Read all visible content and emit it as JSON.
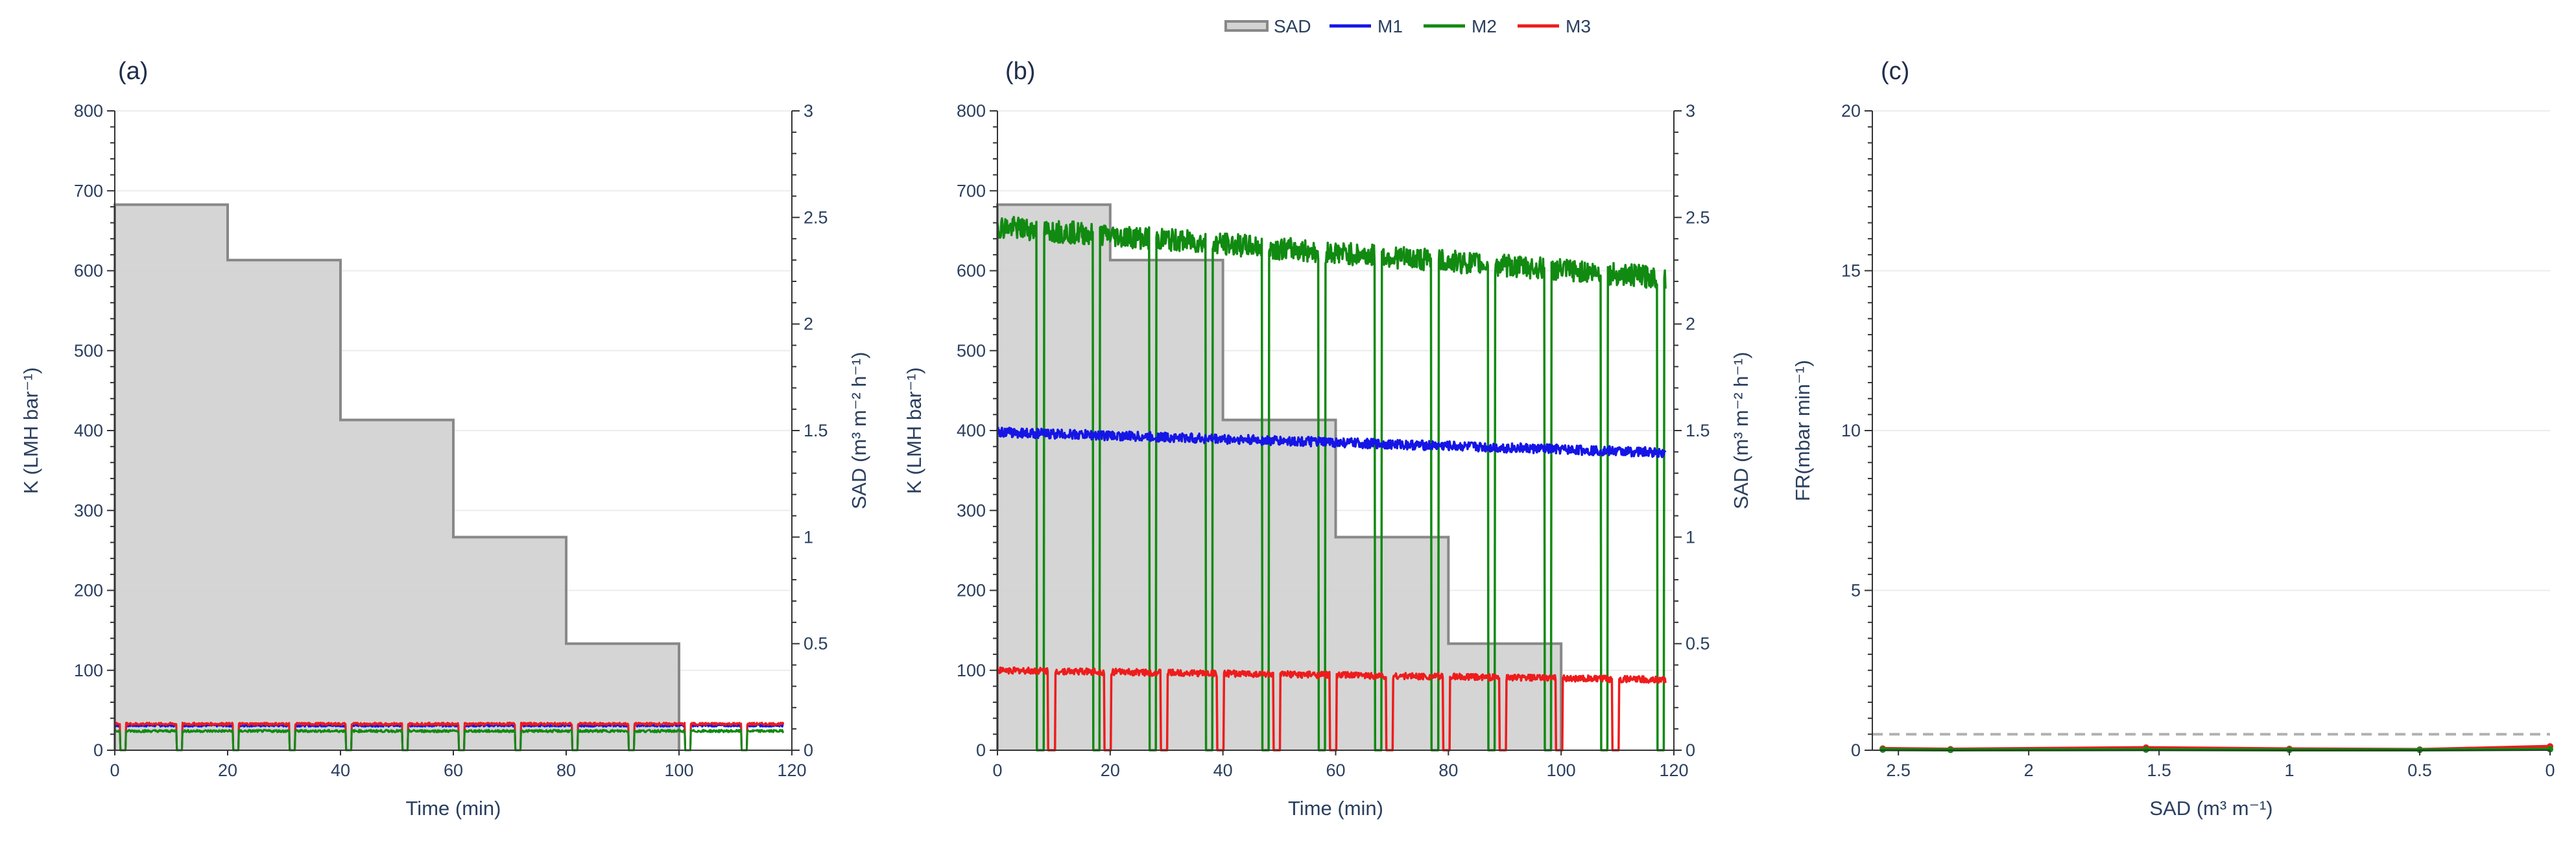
{
  "legend": {
    "items": [
      {
        "name": "SAD",
        "color": "#888888"
      },
      {
        "name": "M1",
        "color": "#1515e6"
      },
      {
        "name": "M2",
        "color": "#118a11"
      },
      {
        "name": "M3",
        "color": "#ee1c1c"
      }
    ]
  },
  "colors": {
    "sad_fill": "#d3d3d3",
    "sad_line": "#888888",
    "m1": "#1515e6",
    "m1_light": "#5a5af0",
    "m2": "#118a11",
    "m2_light": "#2e9d5a",
    "m3": "#ee1c1c",
    "m3_light": "#f06060",
    "axis_text": "#2a3f5f",
    "grid": "#ececec",
    "ref_line": "#b0b0b0"
  },
  "chart_data": [
    {
      "panel": "(a)",
      "type": "line",
      "xlabel": "Time (min)",
      "ylabel": "K (LMH bar⁻¹)",
      "y2label": "SAD (m³ m⁻² h⁻¹)",
      "xlim": [
        0,
        120
      ],
      "ylim": [
        0,
        800
      ],
      "y2lim": [
        0,
        3
      ],
      "xticks": [
        "0",
        "20",
        "40",
        "60",
        "80",
        "100",
        "120"
      ],
      "yticks": [
        "0",
        "100",
        "200",
        "300",
        "400",
        "500",
        "600",
        "700",
        "800"
      ],
      "y2ticks": [
        "0",
        "0.5",
        "1",
        "1.5",
        "2",
        "2.5",
        "3"
      ],
      "sad_steps": [
        {
          "x0": 0,
          "x1": 20,
          "sad": 2.56
        },
        {
          "x0": 20,
          "x1": 40,
          "sad": 2.3
        },
        {
          "x0": 40,
          "x1": 60,
          "sad": 1.55
        },
        {
          "x0": 60,
          "x1": 80,
          "sad": 1.0
        },
        {
          "x0": 80,
          "x1": 100,
          "sad": 0.5
        }
      ],
      "series": [
        {
          "name": "M1",
          "level": 31,
          "noise": 1.5,
          "first_gap_end": 1,
          "period": 10,
          "gap": 1,
          "color_key": "m1"
        },
        {
          "name": "M3",
          "level": 33,
          "noise": 1.5,
          "first_gap_end": 1,
          "period": 10,
          "gap": 1,
          "color_key": "m3"
        },
        {
          "name": "M2",
          "level": 24,
          "noise": 1.5,
          "first_gap_end": 1,
          "period": 10,
          "gap": 1,
          "color_key": "m2"
        }
      ]
    },
    {
      "panel": "(b)",
      "type": "line",
      "xlabel": "Time (min)",
      "ylabel": "K (LMH bar⁻¹)",
      "y2label": "SAD (m³ m⁻² h⁻¹)",
      "xlim": [
        0,
        120
      ],
      "ylim": [
        0,
        800
      ],
      "y2lim": [
        0,
        3
      ],
      "xticks": [
        "0",
        "20",
        "40",
        "60",
        "80",
        "100",
        "120"
      ],
      "yticks": [
        "0",
        "100",
        "200",
        "300",
        "400",
        "500",
        "600",
        "700",
        "800"
      ],
      "y2ticks": [
        "0",
        "0.5",
        "1",
        "1.5",
        "2",
        "2.5",
        "3"
      ],
      "sad_steps": [
        {
          "x0": 0,
          "x1": 20,
          "sad": 2.56
        },
        {
          "x0": 20,
          "x1": 40,
          "sad": 2.3
        },
        {
          "x0": 40,
          "x1": 60,
          "sad": 1.55
        },
        {
          "x0": 60,
          "x1": 80,
          "sad": 1.0
        },
        {
          "x0": 80,
          "x1": 100,
          "sad": 0.5
        }
      ],
      "series": [
        {
          "name": "M2",
          "start": 655,
          "end": 590,
          "noise": 14,
          "first_gap_end": 7,
          "period": 10,
          "gap": 1.2,
          "color_key": "m2"
        },
        {
          "name": "M1",
          "start": 398,
          "end": 372,
          "noise": 6,
          "first_gap_end": 0,
          "period": 0,
          "gap": 0,
          "color_key": "m1"
        },
        {
          "name": "M3",
          "start": 100,
          "end": 88,
          "noise": 4,
          "first_gap_end": 9,
          "period": 10,
          "gap": 1.2,
          "color_key": "m3"
        }
      ]
    },
    {
      "panel": "(c)",
      "type": "line",
      "xlabel": "SAD (m³ m⁻¹)",
      "ylabel": "FR(mbar min⁻¹)",
      "xlim": [
        2.6,
        0
      ],
      "ylim": [
        0,
        20
      ],
      "xticks": [
        "2.5",
        "2",
        "1.5",
        "1",
        "0.5",
        "0"
      ],
      "yticks": [
        "0",
        "5",
        "10",
        "15",
        "20"
      ],
      "reference_line": 0.5,
      "series": [
        {
          "name": "M3",
          "x": [
            2.56,
            2.3,
            1.55,
            1.0,
            0.5,
            0
          ],
          "y": [
            0.05,
            0.03,
            0.08,
            0.04,
            0.02,
            0.12
          ],
          "color_key": "m3"
        },
        {
          "name": "M2",
          "x": [
            2.56,
            2.3,
            1.55,
            1.0,
            0.5,
            0
          ],
          "y": [
            0.02,
            0.01,
            0.02,
            0.01,
            0.01,
            0.03
          ],
          "color_key": "m2"
        }
      ]
    }
  ]
}
